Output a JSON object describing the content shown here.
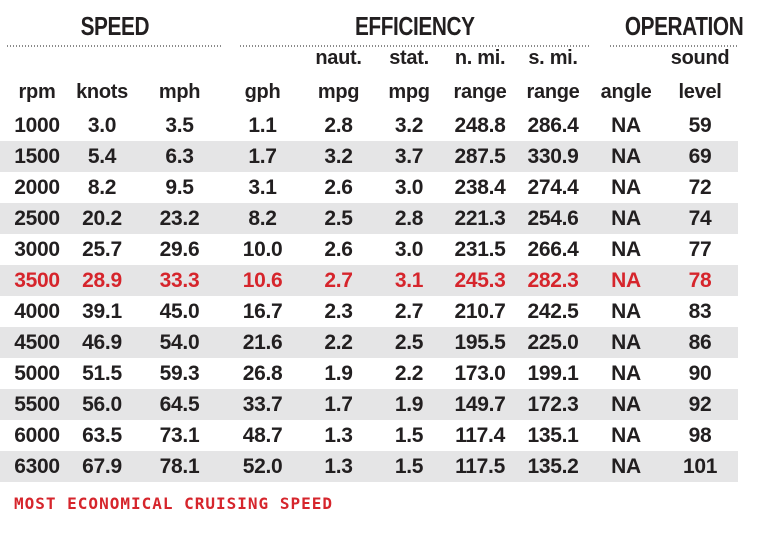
{
  "chart_data": {
    "type": "table",
    "column_groups": [
      {
        "label": "SPEED",
        "span": 3
      },
      {
        "label": "EFFICIENCY",
        "span": 5
      },
      {
        "label": "OPERATION",
        "span": 2
      }
    ],
    "subheader_units": [
      "",
      "",
      "",
      "",
      "naut.",
      "stat.",
      "n. mi.",
      "s. mi.",
      "",
      "sound"
    ],
    "subheader_measures": [
      "rpm",
      "knots",
      "mph",
      "gph",
      "mpg",
      "mpg",
      "range",
      "range",
      "angle",
      "level"
    ],
    "columns": [
      "rpm",
      "knots",
      "mph",
      "gph",
      "naut. mpg",
      "stat. mpg",
      "n. mi. range",
      "s. mi. range",
      "angle",
      "sound level"
    ],
    "rows": [
      [
        "1000",
        "3.0",
        "3.5",
        "1.1",
        "2.8",
        "3.2",
        "248.8",
        "286.4",
        "NA",
        "59"
      ],
      [
        "1500",
        "5.4",
        "6.3",
        "1.7",
        "3.2",
        "3.7",
        "287.5",
        "330.9",
        "NA",
        "69"
      ],
      [
        "2000",
        "8.2",
        "9.5",
        "3.1",
        "2.6",
        "3.0",
        "238.4",
        "274.4",
        "NA",
        "72"
      ],
      [
        "2500",
        "20.2",
        "23.2",
        "8.2",
        "2.5",
        "2.8",
        "221.3",
        "254.6",
        "NA",
        "74"
      ],
      [
        "3000",
        "25.7",
        "29.6",
        "10.0",
        "2.6",
        "3.0",
        "231.5",
        "266.4",
        "NA",
        "77"
      ],
      [
        "3500",
        "28.9",
        "33.3",
        "10.6",
        "2.7",
        "3.1",
        "245.3",
        "282.3",
        "NA",
        "78"
      ],
      [
        "4000",
        "39.1",
        "45.0",
        "16.7",
        "2.3",
        "2.7",
        "210.7",
        "242.5",
        "NA",
        "83"
      ],
      [
        "4500",
        "46.9",
        "54.0",
        "21.6",
        "2.2",
        "2.5",
        "195.5",
        "225.0",
        "NA",
        "86"
      ],
      [
        "5000",
        "51.5",
        "59.3",
        "26.8",
        "1.9",
        "2.2",
        "173.0",
        "199.1",
        "NA",
        "90"
      ],
      [
        "5500",
        "56.0",
        "64.5",
        "33.7",
        "1.7",
        "1.9",
        "149.7",
        "172.3",
        "NA",
        "92"
      ],
      [
        "6000",
        "63.5",
        "73.1",
        "48.7",
        "1.3",
        "1.5",
        "117.4",
        "135.1",
        "NA",
        "98"
      ],
      [
        "6300",
        "67.9",
        "78.1",
        "52.0",
        "1.3",
        "1.5",
        "117.5",
        "135.2",
        "NA",
        "101"
      ]
    ],
    "highlighted_row_index": 5,
    "highlight_note": "MOST ECONOMICAL CRUISING SPEED"
  },
  "footer": {
    "note": "MOST ECONOMICAL CRUISING SPEED"
  },
  "colors": {
    "accent_red": "#d6252c",
    "alt_row_bg": "#e5e5e6",
    "text": "#221f20",
    "rule_gray": "#8a8a8a"
  }
}
